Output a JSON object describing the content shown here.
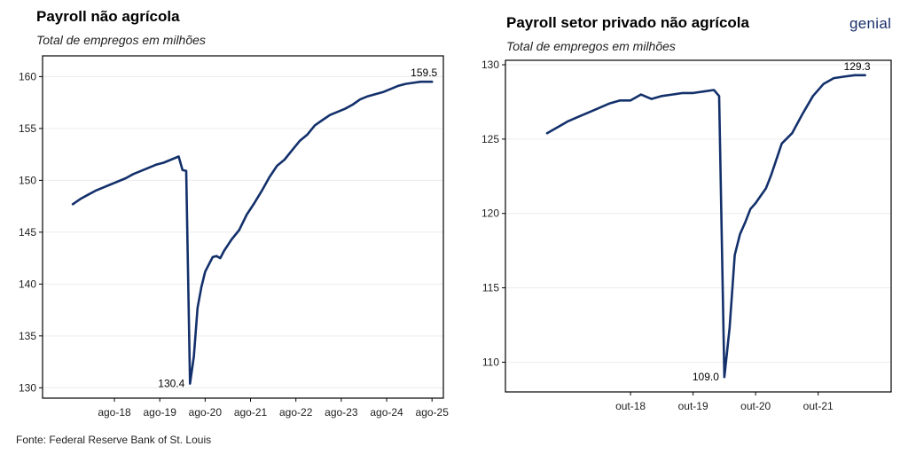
{
  "left_chart": {
    "title": "Payroll não agrícola",
    "subtitle": "Total de empregos em milhões"
  },
  "right_chart": {
    "title": "Payroll setor privado não agrícola",
    "subtitle": "Total de empregos em milhões"
  },
  "logo_text": "genial",
  "source": "Fonte: Federal Reserve Bank of St. Louis",
  "colors": {
    "line": "#13306b",
    "grid": "#ececec",
    "axis": "#000000"
  },
  "chart_data": [
    {
      "type": "line",
      "title": "Payroll não agrícola",
      "subtitle": "Total de empregos em milhões",
      "ylim": [
        129,
        162
      ],
      "yticks": [
        130,
        135,
        140,
        145,
        150,
        155,
        160
      ],
      "xticks": [
        "ago-18",
        "ago-19",
        "ago-20",
        "ago-21",
        "ago-22",
        "ago-23",
        "ago-24",
        "ago-25"
      ],
      "grid": true,
      "series": [
        {
          "x": [
            "2017-09",
            "2017-11",
            "2018-01",
            "2018-03",
            "2018-05",
            "2018-07",
            "2018-09",
            "2018-11",
            "2019-01",
            "2019-03",
            "2019-05",
            "2019-07",
            "2019-09",
            "2019-11",
            "2020-01",
            "2020-02",
            "2020-03",
            "2020-04",
            "2020-05",
            "2020-06",
            "2020-07",
            "2020-08",
            "2020-09",
            "2020-10",
            "2020-11",
            "2020-12",
            "2021-01",
            "2021-03",
            "2021-05",
            "2021-07",
            "2021-09",
            "2021-11",
            "2022-01",
            "2022-03",
            "2022-05",
            "2022-07",
            "2022-09",
            "2022-11",
            "2023-01",
            "2023-03",
            "2023-05",
            "2023-07",
            "2023-09",
            "2023-11",
            "2024-01",
            "2024-03",
            "2024-05",
            "2024-07",
            "2024-09",
            "2024-11",
            "2025-01",
            "2025-03",
            "2025-05",
            "2025-08"
          ],
          "values": [
            147.7,
            148.2,
            148.6,
            149.0,
            149.3,
            149.6,
            149.9,
            150.2,
            150.6,
            150.9,
            151.2,
            151.5,
            151.7,
            152.0,
            152.3,
            151.0,
            150.9,
            130.4,
            133.0,
            137.7,
            139.7,
            141.2,
            141.9,
            142.6,
            142.7,
            142.5,
            143.2,
            144.3,
            145.2,
            146.7,
            147.8,
            149.0,
            150.3,
            151.4,
            152.0,
            152.9,
            153.8,
            154.4,
            155.3,
            155.8,
            156.3,
            156.6,
            156.9,
            157.3,
            157.8,
            158.1,
            158.3,
            158.5,
            158.8,
            159.1,
            159.3,
            159.4,
            159.5,
            159.5
          ]
        }
      ],
      "annotations": [
        {
          "label": "159.5",
          "x": "2025-08",
          "y": 159.5
        },
        {
          "label": "130.4",
          "x": "2020-04",
          "y": 130.4
        }
      ]
    },
    {
      "type": "line",
      "title": "Payroll setor privado não agrícola",
      "subtitle": "Total de empregos em milhões",
      "ylim": [
        108,
        130.3
      ],
      "yticks": [
        110,
        115,
        120,
        125,
        130
      ],
      "xticks": [
        "out-18",
        "out-19",
        "out-20",
        "out-21"
      ],
      "grid": true,
      "series": [
        {
          "x": [
            "2017-06",
            "2017-08",
            "2017-10",
            "2017-12",
            "2018-02",
            "2018-04",
            "2018-06",
            "2018-08",
            "2018-10",
            "2018-12",
            "2019-02",
            "2019-04",
            "2019-06",
            "2019-08",
            "2019-10",
            "2019-12",
            "2020-02",
            "2020-03",
            "2020-04",
            "2020-05",
            "2020-06",
            "2020-07",
            "2020-08",
            "2020-09",
            "2020-10",
            "2020-11",
            "2020-12",
            "2021-01",
            "2021-03",
            "2021-05",
            "2021-07",
            "2021-09",
            "2021-11",
            "2022-01",
            "2022-03",
            "2022-05",
            "2022-07"
          ],
          "values": [
            125.4,
            125.8,
            126.2,
            126.5,
            126.8,
            127.1,
            127.4,
            127.6,
            127.6,
            128.0,
            127.7,
            127.9,
            128.0,
            128.1,
            128.1,
            128.2,
            128.3,
            127.9,
            109.0,
            112.3,
            117.2,
            118.6,
            119.4,
            120.3,
            120.7,
            121.2,
            121.7,
            122.6,
            124.7,
            125.4,
            126.7,
            127.9,
            128.7,
            129.1,
            129.2,
            129.3,
            129.3
          ]
        }
      ],
      "annotations": [
        {
          "label": "129.3",
          "x": "2022-07",
          "y": 129.3
        },
        {
          "label": "109.0",
          "x": "2020-04",
          "y": 109.0
        }
      ]
    }
  ]
}
